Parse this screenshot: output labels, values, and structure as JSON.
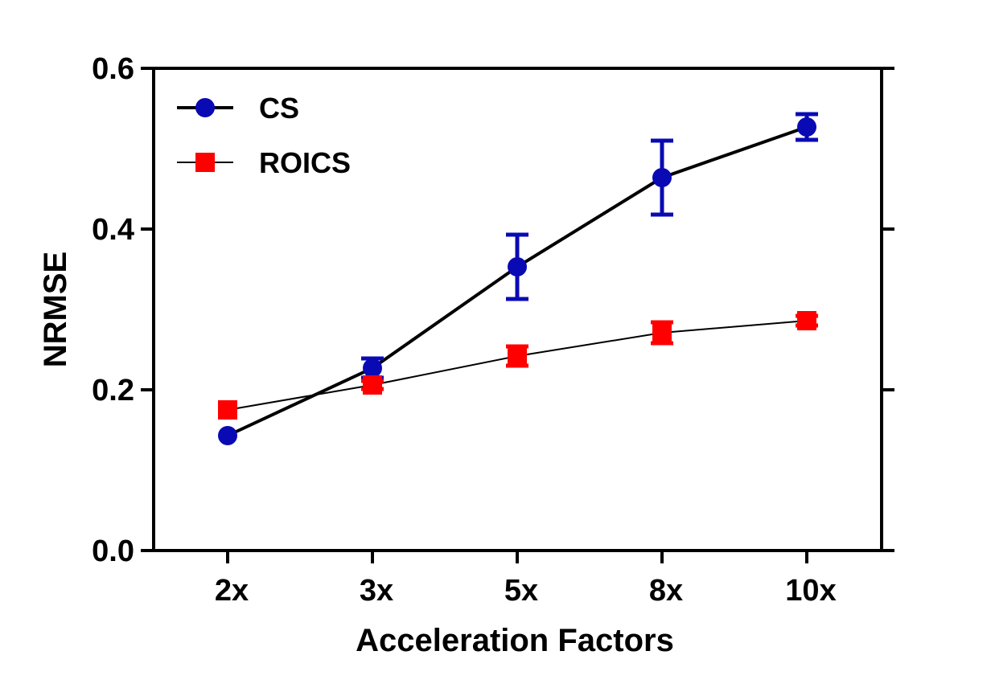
{
  "chart_data": {
    "type": "line",
    "title": "",
    "xlabel": "Acceleration Factors",
    "ylabel": "NRMSE",
    "categories": [
      "2x",
      "3x",
      "5x",
      "8x",
      "10x"
    ],
    "ylim": [
      0.0,
      0.6
    ],
    "yticks": [
      0.0,
      0.2,
      0.4,
      0.6
    ],
    "ytick_labels": [
      "0.0",
      "0.2",
      "0.4",
      "0.6"
    ],
    "grid": false,
    "legend_position": "top-left",
    "series": [
      {
        "name": "CS",
        "marker": "circle",
        "color": "#0a0ab4",
        "line_color": "#000000",
        "values": [
          0.143,
          0.227,
          0.353,
          0.464,
          0.527
        ],
        "errors": [
          0.003,
          0.012,
          0.04,
          0.046,
          0.016
        ]
      },
      {
        "name": "ROICS",
        "marker": "square",
        "color": "#ff0000",
        "line_color": "#000000",
        "values": [
          0.175,
          0.206,
          0.242,
          0.271,
          0.286
        ],
        "errors": [
          0.004,
          0.005,
          0.012,
          0.013,
          0.006
        ]
      }
    ]
  }
}
